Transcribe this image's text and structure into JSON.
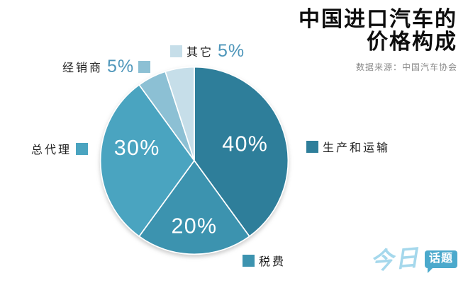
{
  "title": {
    "line1": "中国进口汽车的",
    "line2": "价格构成",
    "source": "数据来源：中国汽车协会"
  },
  "logo": {
    "script_text": "今日",
    "bubble_text": "话题"
  },
  "chart_data": {
    "type": "pie",
    "title": "中国进口汽车的价格构成",
    "source": "数据来源：中国汽车协会",
    "unit": "%",
    "start_angle_deg": 0,
    "direction": "clockwise",
    "legend_position": "callouts-around-pie",
    "slices": [
      {
        "key": "production",
        "label": "生产和运输",
        "value": 40,
        "color": "#2e7e9a"
      },
      {
        "key": "tax",
        "label": "税费",
        "value": 20,
        "color": "#3c93af"
      },
      {
        "key": "agent",
        "label": "总代理",
        "value": 30,
        "color": "#4aa4c0"
      },
      {
        "key": "dealer",
        "label": "经销商",
        "value": 5,
        "color": "#8cc0d4"
      },
      {
        "key": "other",
        "label": "其它",
        "value": 5,
        "color": "#c6dee9"
      }
    ]
  }
}
